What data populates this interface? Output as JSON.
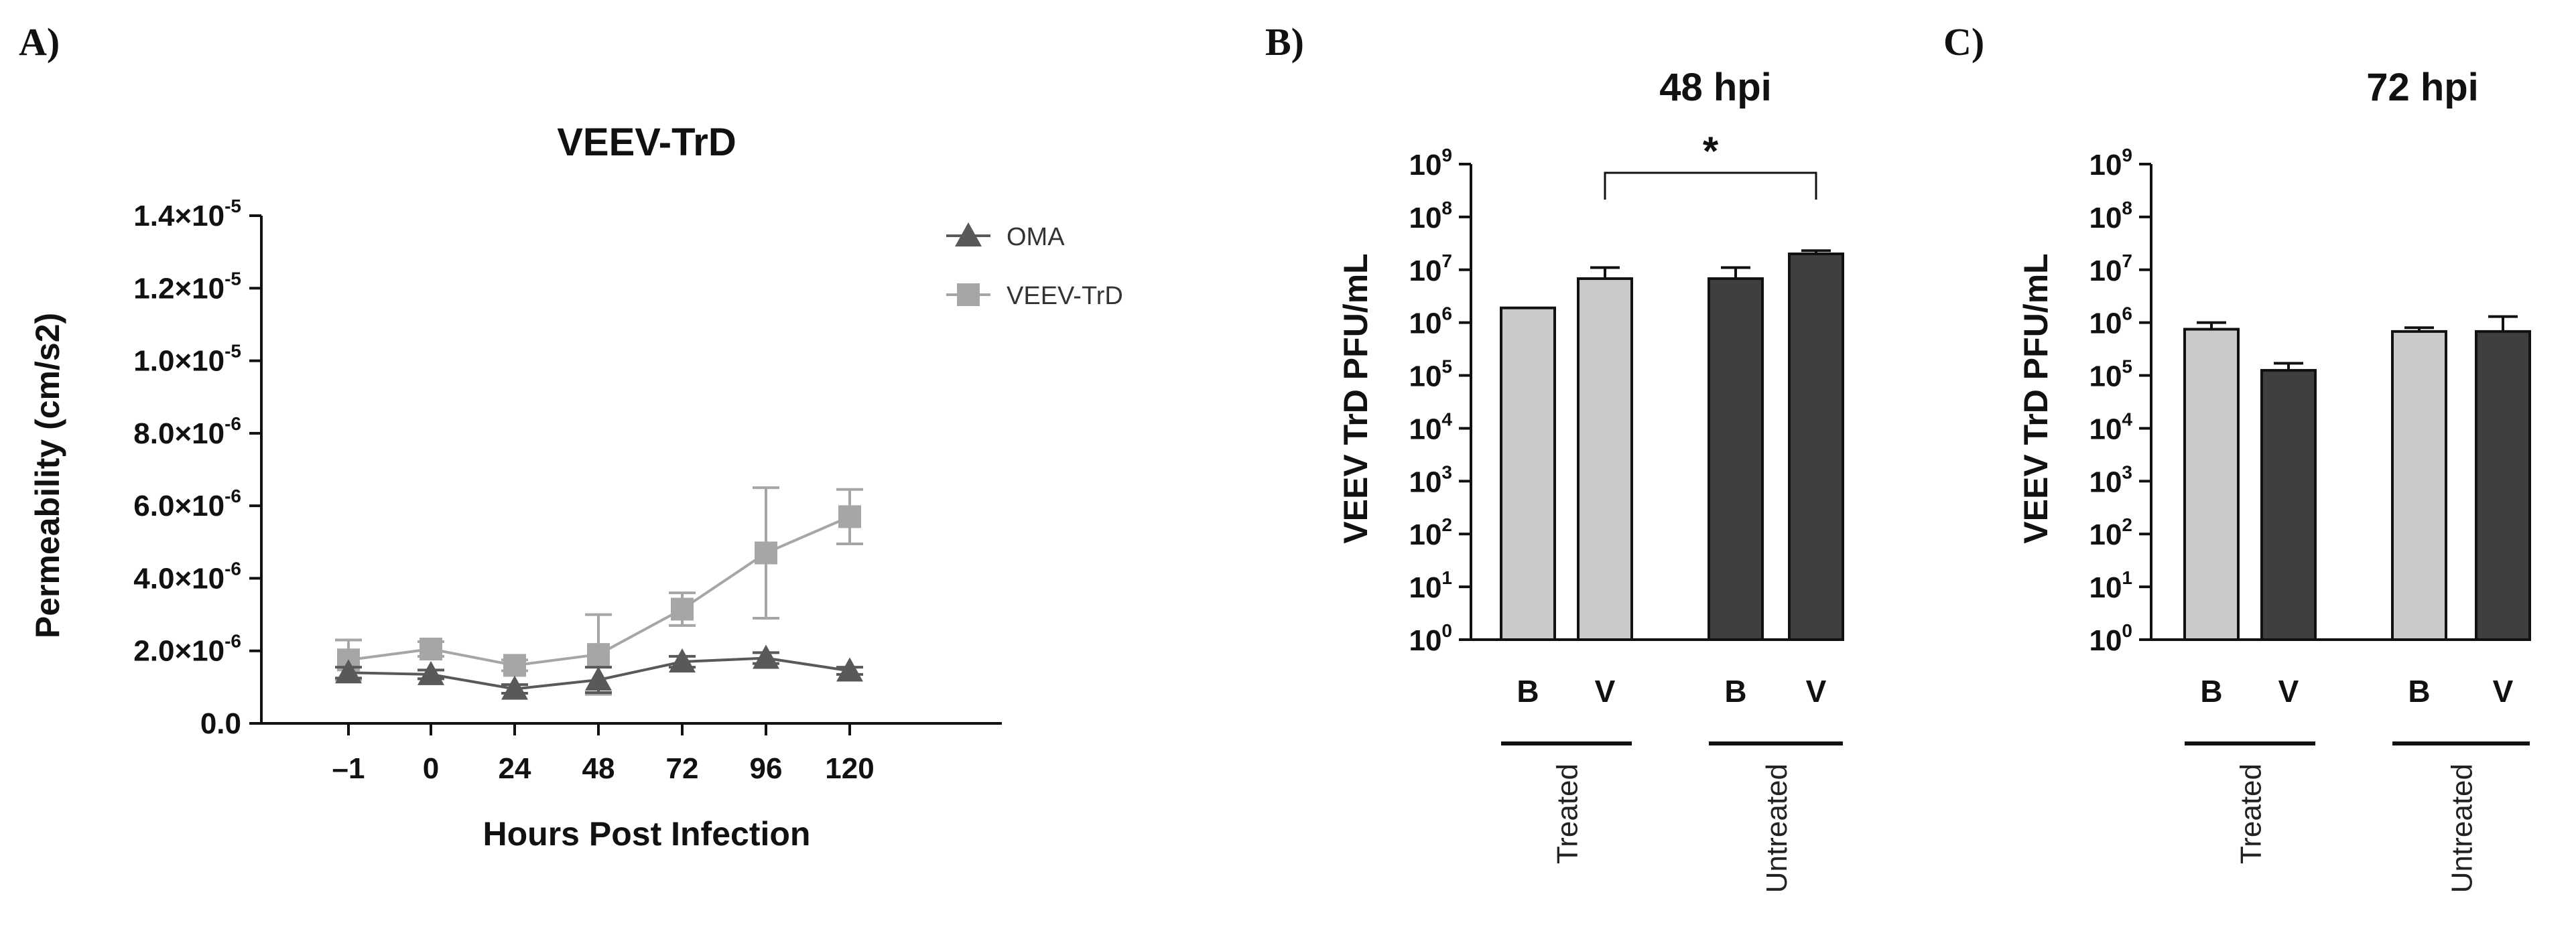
{
  "panels": {
    "a": {
      "label": "A)"
    },
    "b": {
      "label": "B)"
    },
    "c": {
      "label": "C)"
    }
  },
  "chart_data": [
    {
      "type": "line",
      "title": "VEEV-TrD",
      "xlabel": "Hours Post Infection",
      "ylabel": "Permeability (cm/s2)",
      "categories": [
        "–1",
        "0",
        "24",
        "48",
        "72",
        "96",
        "120"
      ],
      "ylim": [
        0,
        1.4e-05
      ],
      "yticks": [
        {
          "value": 0,
          "mantissa": "0.0",
          "exp": ""
        },
        {
          "value": 2e-06,
          "mantissa": "2.0×10",
          "exp": "-6"
        },
        {
          "value": 4e-06,
          "mantissa": "4.0×10",
          "exp": "-6"
        },
        {
          "value": 6e-06,
          "mantissa": "6.0×10",
          "exp": "-6"
        },
        {
          "value": 8e-06,
          "mantissa": "8.0×10",
          "exp": "-6"
        },
        {
          "value": 1e-05,
          "mantissa": "1.0×10",
          "exp": "-5"
        },
        {
          "value": 1.2e-05,
          "mantissa": "1.2×10",
          "exp": "-5"
        },
        {
          "value": 1.4e-05,
          "mantissa": "1.4×10",
          "exp": "-5"
        }
      ],
      "legend_position": "top-right",
      "series": [
        {
          "name": "OMA",
          "marker": "triangle",
          "color": "#595959",
          "values": [
            1.4e-06,
            1.35e-06,
            9.5e-07,
            1.2e-06,
            1.7e-06,
            1.8e-06,
            1.45e-06
          ],
          "errors": [
            1.5e-07,
            1.2e-07,
            1.2e-07,
            3.5e-07,
            1.5e-07,
            1.5e-07,
            1e-07
          ]
        },
        {
          "name": "VEEV-TrD",
          "marker": "square",
          "color": "#a6a6a6",
          "values": [
            1.75e-06,
            2.05e-06,
            1.6e-06,
            1.9e-06,
            3.15e-06,
            4.7e-06,
            5.7e-06
          ],
          "errors": [
            5.5e-07,
            2e-07,
            1.5e-07,
            1.1e-06,
            4.5e-07,
            1.8e-06,
            7.5e-07
          ]
        }
      ]
    },
    {
      "type": "bar",
      "title": "48 hpi",
      "ylabel": "VEEV TrD PFU/mL",
      "yscale": "log10",
      "ylim_exp": [
        0,
        9
      ],
      "ytick_base": "10",
      "categories": [
        "B",
        "V",
        "B",
        "V"
      ],
      "groups": [
        {
          "name": "Treated",
          "span": [
            0,
            1
          ]
        },
        {
          "name": "Untreated",
          "span": [
            2,
            3
          ]
        }
      ],
      "values": [
        1900000.0,
        6800000.0,
        6800000.0,
        20000000.0
      ],
      "errors_upper": [
        0,
        11000000.0,
        11000000.0,
        23000000.0
      ],
      "colors": [
        "#c9cacc",
        "#c9cacc",
        "#3d403f",
        "#3d403f"
      ],
      "significance": {
        "between": [
          1,
          3
        ],
        "label": "*"
      }
    },
    {
      "type": "bar",
      "title": "72 hpi",
      "ylabel": "VEEV TrD PFU/mL",
      "yscale": "log10",
      "ylim_exp": [
        0,
        9
      ],
      "ytick_base": "10",
      "categories": [
        "B",
        "V",
        "B",
        "V"
      ],
      "groups": [
        {
          "name": "Treated",
          "span": [
            0,
            1
          ]
        },
        {
          "name": "Untreated",
          "span": [
            2,
            3
          ]
        }
      ],
      "values": [
        750000.0,
        125000.0,
        680000.0,
        680000.0
      ],
      "errors_upper": [
        1000000.0,
        170000.0,
        800000.0,
        1300000.0
      ],
      "colors": [
        "#c9cacc",
        "#3d403f",
        "#c9cacc",
        "#3d403f"
      ]
    }
  ]
}
